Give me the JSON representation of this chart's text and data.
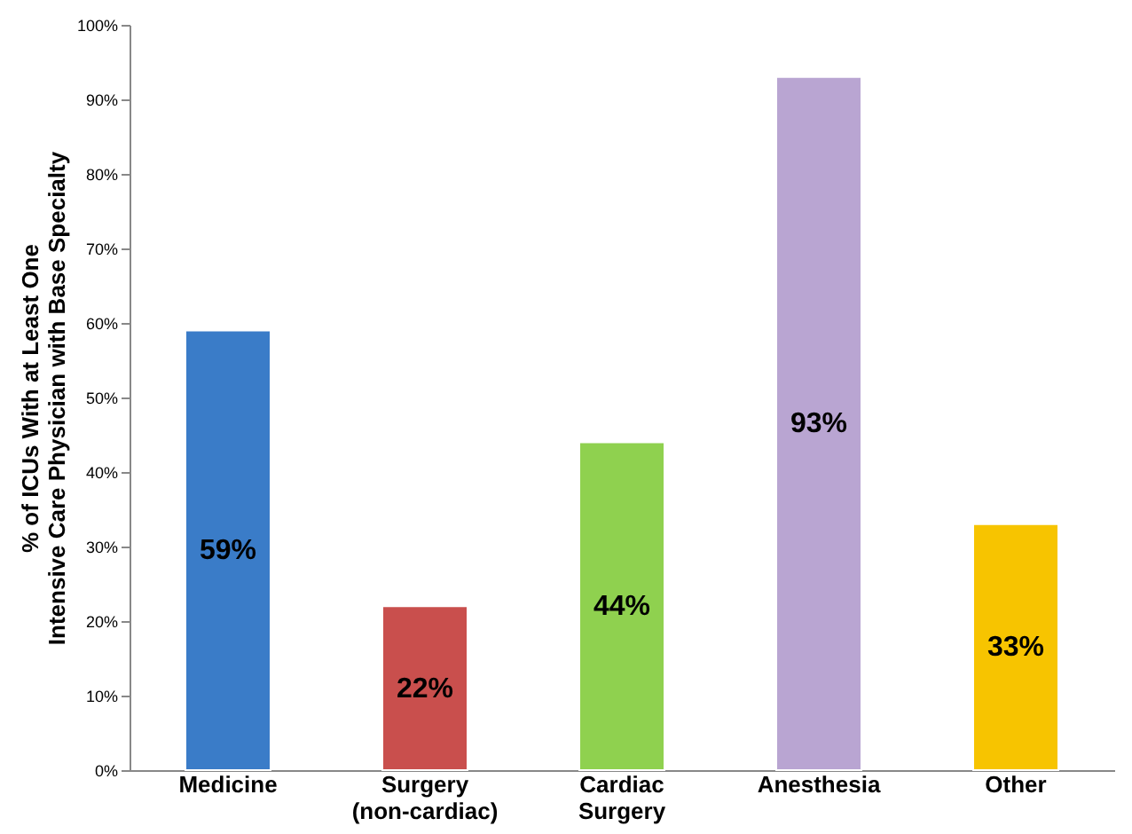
{
  "chart_data": {
    "type": "bar",
    "ylabel": "% of ICUs With at Least One Intensive Care Physician with Base Specialty",
    "categories": [
      "Medicine",
      "Surgery (non-cardiac)",
      "Cardiac Surgery",
      "Anesthesia",
      "Other"
    ],
    "values": [
      59,
      22,
      44,
      93,
      33
    ],
    "colors": [
      "#3a7cc8",
      "#c94f4d",
      "#8fd14f",
      "#b9a5d2",
      "#f7c400"
    ],
    "value_labels": [
      "59%",
      "22%",
      "44%",
      "93%",
      "33%"
    ],
    "ylim": [
      0,
      100
    ],
    "yticks": [
      {
        "value": 0,
        "label": "0%"
      },
      {
        "value": 10,
        "label": "10%"
      },
      {
        "value": 20,
        "label": "20%"
      },
      {
        "value": 30,
        "label": "30%"
      },
      {
        "value": 40,
        "label": "40%"
      },
      {
        "value": 50,
        "label": "50%"
      },
      {
        "value": 60,
        "label": "60%"
      },
      {
        "value": 70,
        "label": "70%"
      },
      {
        "value": 80,
        "label": "80%"
      },
      {
        "value": 90,
        "label": "90%"
      },
      {
        "value": 100,
        "label": "100%"
      }
    ],
    "grid": false
  }
}
